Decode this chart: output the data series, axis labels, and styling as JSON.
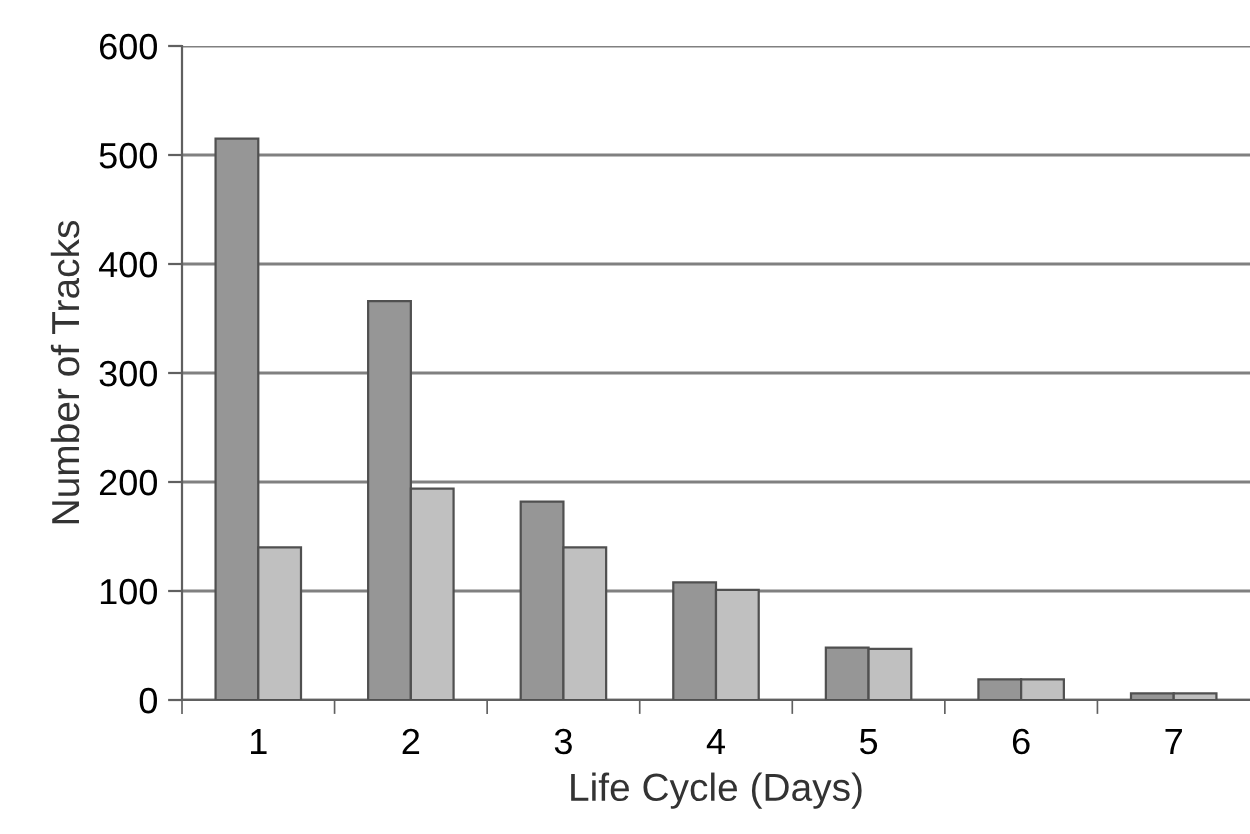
{
  "chart_data": {
    "type": "bar",
    "xlabel": "Life Cycle (Days)",
    "ylabel": "Number of Tracks",
    "categories": [
      "1",
      "2",
      "3",
      "4",
      "5",
      "6",
      "7"
    ],
    "series": [
      {
        "color": "#969696",
        "values": [
          515,
          366,
          182,
          108,
          48,
          19,
          6
        ]
      },
      {
        "color": "#c0c0c0",
        "values": [
          140,
          194,
          140,
          101,
          47,
          19,
          6
        ]
      }
    ],
    "ylim": [
      0,
      600
    ],
    "yticks": [
      0,
      100,
      200,
      300,
      400,
      500,
      600
    ],
    "grid": "y",
    "legend": false
  }
}
